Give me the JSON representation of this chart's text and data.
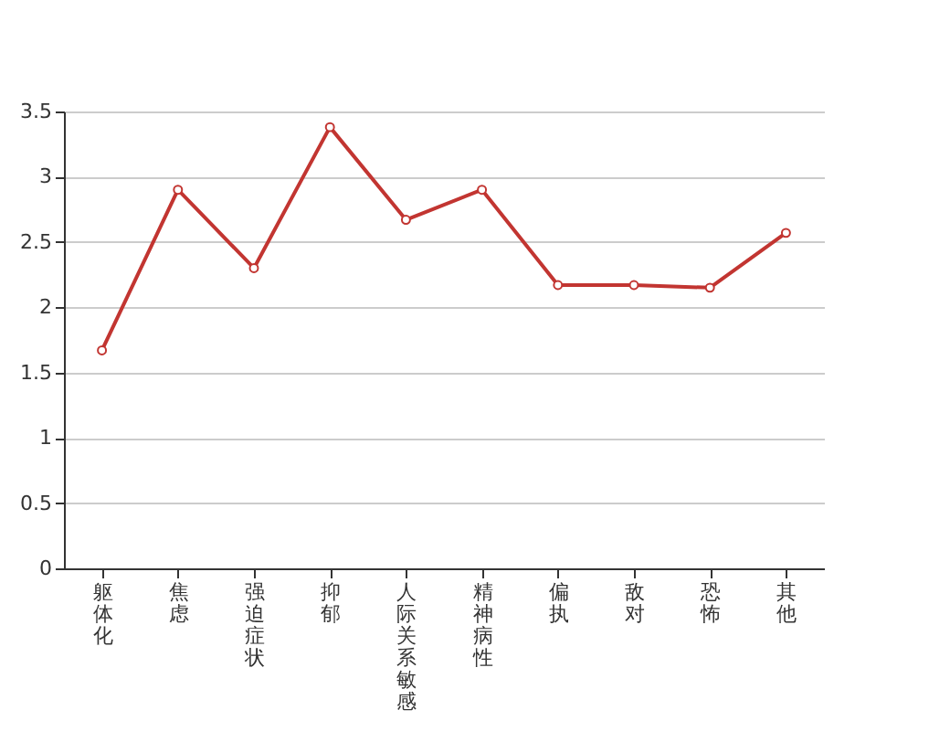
{
  "chart_data": {
    "type": "line",
    "categories": [
      "躯体化",
      "焦虑",
      "强迫症状",
      "抑郁",
      "人际关系敏感",
      "精神病性",
      "偏执",
      "敌对",
      "恐怖",
      "其他"
    ],
    "series": [
      {
        "color": "#c23531",
        "values": [
          1.67,
          2.9,
          2.3,
          3.38,
          2.67,
          2.9,
          2.17,
          2.17,
          2.15,
          2.57
        ]
      }
    ],
    "ylim": [
      0,
      3.5
    ],
    "yticks": [
      0,
      0.5,
      1,
      1.5,
      2,
      2.5,
      3,
      3.5
    ],
    "grid": "y",
    "marker": "circle"
  }
}
